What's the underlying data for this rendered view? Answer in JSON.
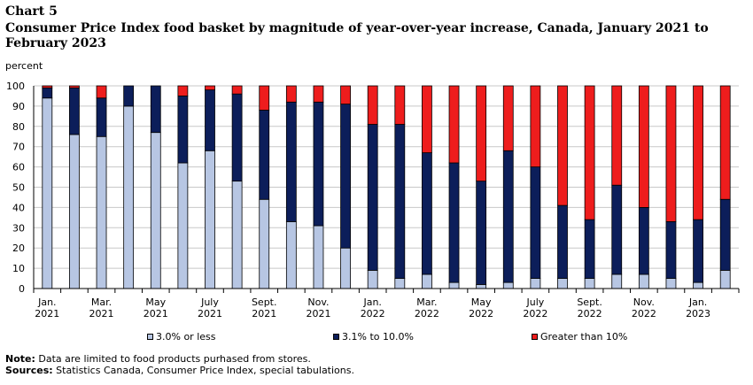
{
  "header": {
    "chart_label": "Chart 5",
    "title": "Consumer Price Index food basket by magnitude of year-over-year increase, Canada, January 2021 to February 2023"
  },
  "notes": {
    "note_label": "Note:",
    "note_text": "Data are limited to food products purhased from stores.",
    "sources_label": "Sources:",
    "sources_text": "Statistics Canada, Consumer Price Index, special tabulations."
  },
  "chart_data": {
    "type": "bar",
    "stacked": true,
    "ylabel": "percent",
    "xlabel": "",
    "ylim": [
      0,
      100
    ],
    "yticks": [
      0,
      10,
      20,
      30,
      40,
      50,
      60,
      70,
      80,
      90,
      100
    ],
    "grid": true,
    "legend_position": "bottom",
    "categories": [
      "Jan. 2021",
      "Feb. 2021",
      "Mar. 2021",
      "Apr. 2021",
      "May 2021",
      "Jun. 2021",
      "July 2021",
      "Aug. 2021",
      "Sept. 2021",
      "Oct. 2021",
      "Nov. 2021",
      "Dec. 2021",
      "Jan. 2022",
      "Feb. 2022",
      "Mar. 2022",
      "Apr. 2022",
      "May 2022",
      "Jun. 2022",
      "July 2022",
      "Aug. 2022",
      "Sept. 2022",
      "Oct. 2022",
      "Nov. 2022",
      "Dec. 2022",
      "Jan. 2023",
      "Feb. 2023"
    ],
    "tick_labels": [
      {
        "index": 0,
        "line1": "Jan.",
        "line2": "2021"
      },
      {
        "index": 2,
        "line1": "Mar.",
        "line2": "2021"
      },
      {
        "index": 4,
        "line1": "May",
        "line2": "2021"
      },
      {
        "index": 6,
        "line1": "July",
        "line2": "2021"
      },
      {
        "index": 8,
        "line1": "Sept.",
        "line2": "2021"
      },
      {
        "index": 10,
        "line1": "Nov.",
        "line2": "2021"
      },
      {
        "index": 12,
        "line1": "Jan.",
        "line2": "2022"
      },
      {
        "index": 14,
        "line1": "Mar.",
        "line2": "2022"
      },
      {
        "index": 16,
        "line1": "May",
        "line2": "2022"
      },
      {
        "index": 18,
        "line1": "July",
        "line2": "2022"
      },
      {
        "index": 20,
        "line1": "Sept.",
        "line2": "2022"
      },
      {
        "index": 22,
        "line1": "Nov.",
        "line2": "2022"
      },
      {
        "index": 24,
        "line1": "Jan.",
        "line2": "2023"
      }
    ],
    "series": [
      {
        "name": "3.0% or less",
        "color": "#b7c6e3",
        "values": [
          94,
          76,
          75,
          90,
          77,
          62,
          68,
          53,
          44,
          33,
          31,
          20,
          9,
          5,
          7,
          3,
          2,
          3,
          5,
          5,
          5,
          7,
          7,
          5,
          3,
          9
        ]
      },
      {
        "name": "3.1% to 10.0%",
        "color": "#0c1e5a",
        "values": [
          5,
          23,
          19,
          10,
          23,
          33,
          30,
          43,
          44,
          59,
          61,
          71,
          72,
          76,
          60,
          59,
          51,
          65,
          55,
          36,
          29,
          44,
          33,
          28,
          31,
          35
        ]
      },
      {
        "name": "Greater than 10%",
        "color": "#ee1d1d",
        "values": [
          1,
          1,
          6,
          0,
          0,
          5,
          2,
          4,
          12,
          8,
          8,
          9,
          19,
          19,
          33,
          38,
          47,
          32,
          40,
          59,
          66,
          49,
          60,
          67,
          66,
          56
        ]
      }
    ]
  }
}
